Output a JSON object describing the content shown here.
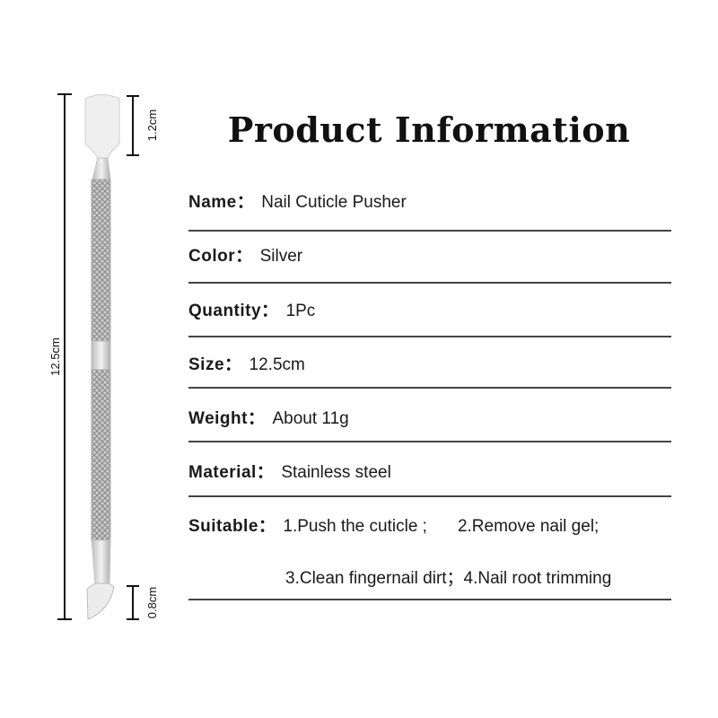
{
  "title": "Product Information",
  "dimensions": {
    "total": "12.5cm",
    "top_tip": "1.2cm",
    "bottom_tip": "0.8cm"
  },
  "specs": [
    {
      "label": "Name：",
      "value": "Nail Cuticle Pusher"
    },
    {
      "label": "Color：",
      "value": "Silver"
    },
    {
      "label": "Quantity：",
      "value": "1Pc"
    },
    {
      "label": "Size：",
      "value": "12.5cm"
    },
    {
      "label": "Weight：",
      "value": "About 11g"
    },
    {
      "label": "Material：",
      "value": "Stainless steel"
    },
    {
      "label": "Suitable：",
      "value": "1.Push the cuticle ;",
      "value2": "2.Remove nail gel;",
      "line2": "3.Clean fingernail dirt；4.Nail root trimming"
    }
  ]
}
